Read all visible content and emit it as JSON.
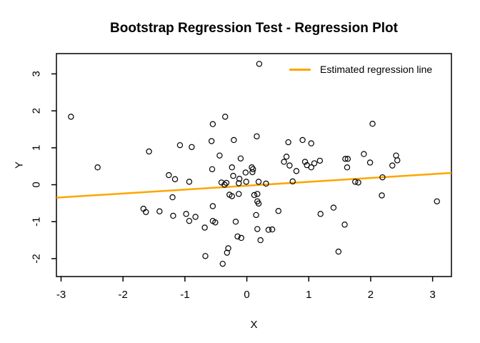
{
  "figure": {
    "title": "Bootstrap Regression Test - Regression Plot",
    "xlabel": "X",
    "ylabel": "Y"
  },
  "chart_data": {
    "type": "scatter",
    "title": "Bootstrap Regression Test - Regression Plot",
    "xlabel": "X",
    "ylabel": "Y",
    "xlim": [
      -3.075,
      3.304
    ],
    "ylim": [
      -2.485,
      3.549
    ],
    "x_ticks": [
      -3,
      -2,
      -1,
      0,
      1,
      2,
      3
    ],
    "y_ticks": [
      -2,
      -1,
      0,
      1,
      2,
      3
    ],
    "grid": false,
    "legend": {
      "label": "Estimated regression line",
      "position": "topright",
      "line_color": "#FFA500"
    },
    "regression_line": {
      "slope": 0.105,
      "intercept": -0.027
    },
    "point_style": {
      "shape": "open-circle",
      "stroke": "#000000"
    },
    "colors": {
      "line": "#FFA500",
      "points": "#000000",
      "axis": "#000000",
      "background": "#FFFFFF"
    },
    "points": [
      [
        -2.84,
        1.84
      ],
      [
        -1.58,
        0.9
      ],
      [
        -1.08,
        1.07
      ],
      [
        -0.89,
        1.02
      ],
      [
        0.2,
        3.27
      ],
      [
        -0.35,
        1.84
      ],
      [
        -0.55,
        1.64
      ],
      [
        -0.57,
        1.18
      ],
      [
        -0.21,
        1.21
      ],
      [
        0.16,
        1.31
      ],
      [
        -0.44,
        0.79
      ],
      [
        -0.1,
        0.71
      ],
      [
        0.67,
        1.15
      ],
      [
        0.9,
        1.21
      ],
      [
        1.04,
        1.12
      ],
      [
        0.64,
        0.76
      ],
      [
        0.6,
        0.62
      ],
      [
        0.69,
        0.52
      ],
      [
        0.8,
        0.37
      ],
      [
        0.94,
        0.62
      ],
      [
        0.97,
        0.53
      ],
      [
        1.09,
        0.58
      ],
      [
        1.04,
        0.47
      ],
      [
        1.18,
        0.65
      ],
      [
        2.03,
        1.65
      ],
      [
        1.59,
        0.7
      ],
      [
        1.63,
        0.7
      ],
      [
        1.89,
        0.83
      ],
      [
        1.99,
        0.6
      ],
      [
        2.41,
        0.79
      ],
      [
        2.43,
        0.66
      ],
      [
        2.35,
        0.52
      ],
      [
        1.62,
        0.47
      ],
      [
        -2.41,
        0.47
      ],
      [
        -1.26,
        0.26
      ],
      [
        -1.16,
        0.15
      ],
      [
        -0.93,
        0.08
      ],
      [
        -1.2,
        -0.34
      ],
      [
        -1.67,
        -0.65
      ],
      [
        -1.63,
        -0.74
      ],
      [
        -1.41,
        -0.72
      ],
      [
        -1.19,
        -0.84
      ],
      [
        -0.98,
        -0.79
      ],
      [
        -0.93,
        -0.98
      ],
      [
        -0.83,
        -0.87
      ],
      [
        -0.56,
        0.42
      ],
      [
        -0.24,
        0.47
      ],
      [
        -0.02,
        0.33
      ],
      [
        0.08,
        0.47
      ],
      [
        0.1,
        0.42
      ],
      [
        0.09,
        0.34
      ],
      [
        -0.41,
        0.06
      ],
      [
        -0.33,
        0.05
      ],
      [
        -0.36,
        0.0
      ],
      [
        -0.22,
        0.24
      ],
      [
        -0.12,
        0.16
      ],
      [
        -0.13,
        0.04
      ],
      [
        -0.01,
        0.08
      ],
      [
        0.19,
        0.08
      ],
      [
        0.31,
        0.03
      ],
      [
        0.74,
        0.09
      ],
      [
        -0.28,
        -0.27
      ],
      [
        -0.24,
        -0.31
      ],
      [
        -0.13,
        -0.25
      ],
      [
        0.12,
        -0.28
      ],
      [
        0.17,
        -0.25
      ],
      [
        0.17,
        -0.45
      ],
      [
        0.19,
        -0.51
      ],
      [
        -0.55,
        -0.58
      ],
      [
        0.51,
        -0.71
      ],
      [
        0.15,
        -0.82
      ],
      [
        -0.18,
        -1.0
      ],
      [
        -0.55,
        -0.98
      ],
      [
        -0.51,
        -1.02
      ],
      [
        -0.68,
        -1.16
      ],
      [
        0.35,
        -1.22
      ],
      [
        0.41,
        -1.21
      ],
      [
        0.17,
        -1.2
      ],
      [
        -0.15,
        -1.4
      ],
      [
        -0.09,
        -1.44
      ],
      [
        0.22,
        -1.5
      ],
      [
        -0.3,
        -1.72
      ],
      [
        -0.32,
        -1.84
      ],
      [
        -0.67,
        -1.93
      ],
      [
        -0.39,
        -2.14
      ],
      [
        1.75,
        0.08
      ],
      [
        1.8,
        0.06
      ],
      [
        2.19,
        0.2
      ],
      [
        2.18,
        -0.29
      ],
      [
        3.07,
        -0.45
      ],
      [
        1.4,
        -0.62
      ],
      [
        1.19,
        -0.79
      ],
      [
        1.58,
        -1.08
      ],
      [
        1.48,
        -1.81
      ]
    ]
  }
}
